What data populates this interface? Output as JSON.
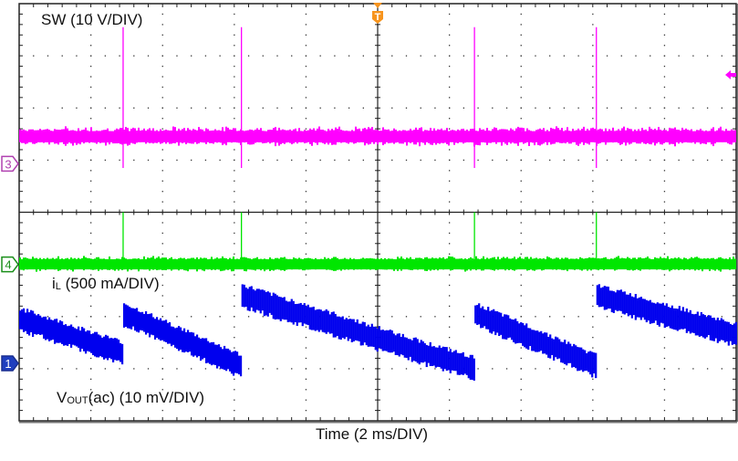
{
  "chart_data": {
    "type": "line",
    "title": "",
    "xlabel": "Time (2 ms/DIV)",
    "ylabel": "",
    "grid": true,
    "x_divisions": 10,
    "y_divisions": 8,
    "time_per_div_ms": 2,
    "x_range_ms": [
      0,
      20
    ],
    "trigger_marker": {
      "label": "T",
      "position_ms": 10,
      "color": "#f7941d"
    },
    "series": [
      {
        "name": "SW",
        "channel": "3",
        "scale_label": "SW (10 V/DIV)",
        "scale_per_div": "10 V",
        "color": "#ff00ff",
        "baseline_div_from_top": 2.5,
        "spike_times_ms": [
          2.9,
          6.2,
          12.7,
          16.1
        ],
        "spike_height_div": 3.9,
        "marker_side": "right-arrow"
      },
      {
        "name": "iL",
        "channel": "4",
        "scale_label": "iL (500 mA/DIV)",
        "scale_per_div": "500 mA",
        "color": "#00e600",
        "baseline_div_from_top": 5.0,
        "spike_times_ms": [
          2.9,
          6.2,
          12.7,
          16.1
        ],
        "spike_height_div": 1.0
      },
      {
        "name": "VOUT(ac)",
        "channel": "1",
        "scale_label": "VOUT(ac) (10 mV/DIV)",
        "scale_per_div": "10 mV",
        "color": "#0000ee",
        "shape": "sawtooth",
        "step_times_ms": [
          2.9,
          6.2,
          12.7,
          16.1
        ],
        "ramp_start_div_from_top": 6.0,
        "ramp_end_div_from_top": 7.0,
        "step_up_div": 1.0
      }
    ]
  },
  "labels": {
    "sw": "SW (10 V/DIV)",
    "il_main": "i",
    "il_sub": "L",
    "il_rest": " (500 mA/DIV)",
    "vout_main": "V",
    "vout_sub": "OUT",
    "vout_rest": "(ac) (10 mV/DIV)",
    "xlabel": "Time (2 ms/DIV)",
    "ch3": "3",
    "ch4": "4",
    "ch1": "1",
    "trigger": "T"
  },
  "colors": {
    "sw": "#ff00ff",
    "il": "#00e600",
    "vout": "#0000ee",
    "trigger": "#f7941d",
    "grid": "#333333",
    "ch3_marker": "#b040b0",
    "ch4_marker": "#1a8f1a",
    "ch1_marker": "#1f3fbf"
  }
}
